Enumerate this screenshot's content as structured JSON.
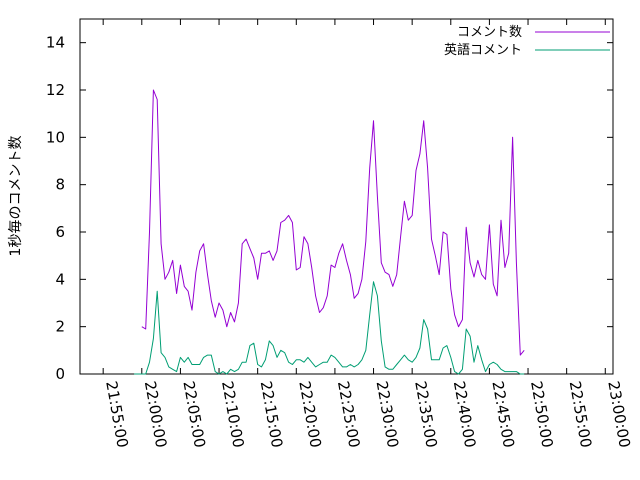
{
  "chart_data": {
    "type": "line",
    "title": "",
    "xlabel": "",
    "ylabel": "1秒毎のコメント数",
    "x_unit": "time (HH:MM:SS)",
    "xlim": [
      "21:52:00",
      "23:01:00"
    ],
    "ylim": [
      0,
      15
    ],
    "x_ticks": [
      "21:55:00",
      "22:00:00",
      "22:05:00",
      "22:10:00",
      "22:15:00",
      "22:20:00",
      "22:25:00",
      "22:30:00",
      "22:35:00",
      "22:40:00",
      "22:45:00",
      "22:50:00",
      "22:55:00",
      "23:00:00"
    ],
    "y_ticks": [
      0,
      2,
      4,
      6,
      8,
      10,
      12,
      14
    ],
    "grid": false,
    "legend_position": "top-right",
    "series": [
      {
        "name": "コメント数",
        "color": "#9400d3",
        "points": [
          [
            "22:00:00",
            2.0
          ],
          [
            "22:00:30",
            1.9
          ],
          [
            "22:01:00",
            6.0
          ],
          [
            "22:01:30",
            12.0
          ],
          [
            "22:02:00",
            11.6
          ],
          [
            "22:02:30",
            5.5
          ],
          [
            "22:03:00",
            4.0
          ],
          [
            "22:03:30",
            4.3
          ],
          [
            "22:04:00",
            4.8
          ],
          [
            "22:04:30",
            3.4
          ],
          [
            "22:05:00",
            4.6
          ],
          [
            "22:05:30",
            3.7
          ],
          [
            "22:06:00",
            3.5
          ],
          [
            "22:06:30",
            2.7
          ],
          [
            "22:07:00",
            4.3
          ],
          [
            "22:07:30",
            5.2
          ],
          [
            "22:08:00",
            5.5
          ],
          [
            "22:08:30",
            4.2
          ],
          [
            "22:09:00",
            3.1
          ],
          [
            "22:09:30",
            2.4
          ],
          [
            "22:10:00",
            3.0
          ],
          [
            "22:10:30",
            2.7
          ],
          [
            "22:11:00",
            2.0
          ],
          [
            "22:11:30",
            2.6
          ],
          [
            "22:12:00",
            2.2
          ],
          [
            "22:12:30",
            3.0
          ],
          [
            "22:13:00",
            5.5
          ],
          [
            "22:13:30",
            5.7
          ],
          [
            "22:14:00",
            5.3
          ],
          [
            "22:14:30",
            4.9
          ],
          [
            "22:15:00",
            4.0
          ],
          [
            "22:15:30",
            5.1
          ],
          [
            "22:16:00",
            5.1
          ],
          [
            "22:16:30",
            5.2
          ],
          [
            "22:17:00",
            4.8
          ],
          [
            "22:17:30",
            5.2
          ],
          [
            "22:18:00",
            6.4
          ],
          [
            "22:18:30",
            6.5
          ],
          [
            "22:19:00",
            6.7
          ],
          [
            "22:19:30",
            6.4
          ],
          [
            "22:20:00",
            4.4
          ],
          [
            "22:20:30",
            4.5
          ],
          [
            "22:21:00",
            5.8
          ],
          [
            "22:21:30",
            5.5
          ],
          [
            "22:22:00",
            4.5
          ],
          [
            "22:22:30",
            3.3
          ],
          [
            "22:23:00",
            2.6
          ],
          [
            "22:23:30",
            2.8
          ],
          [
            "22:24:00",
            3.3
          ],
          [
            "22:24:30",
            4.6
          ],
          [
            "22:25:00",
            4.5
          ],
          [
            "22:25:30",
            5.1
          ],
          [
            "22:26:00",
            5.5
          ],
          [
            "22:26:30",
            4.8
          ],
          [
            "22:27:00",
            4.2
          ],
          [
            "22:27:30",
            3.2
          ],
          [
            "22:28:00",
            3.4
          ],
          [
            "22:28:30",
            4.0
          ],
          [
            "22:29:00",
            5.6
          ],
          [
            "22:29:30",
            8.7
          ],
          [
            "22:30:00",
            10.7
          ],
          [
            "22:30:30",
            7.5
          ],
          [
            "22:31:00",
            4.7
          ],
          [
            "22:31:30",
            4.3
          ],
          [
            "22:32:00",
            4.2
          ],
          [
            "22:32:30",
            3.7
          ],
          [
            "22:33:00",
            4.2
          ],
          [
            "22:33:30",
            5.8
          ],
          [
            "22:34:00",
            7.3
          ],
          [
            "22:34:30",
            6.5
          ],
          [
            "22:35:00",
            6.7
          ],
          [
            "22:35:30",
            8.6
          ],
          [
            "22:36:00",
            9.3
          ],
          [
            "22:36:30",
            10.7
          ],
          [
            "22:37:00",
            8.7
          ],
          [
            "22:37:30",
            5.7
          ],
          [
            "22:38:00",
            5.0
          ],
          [
            "22:38:30",
            4.2
          ],
          [
            "22:39:00",
            6.0
          ],
          [
            "22:39:30",
            5.9
          ],
          [
            "22:40:00",
            3.6
          ],
          [
            "22:40:30",
            2.5
          ],
          [
            "22:41:00",
            2.0
          ],
          [
            "22:41:30",
            2.3
          ],
          [
            "22:42:00",
            6.2
          ],
          [
            "22:42:30",
            4.7
          ],
          [
            "22:43:00",
            4.1
          ],
          [
            "22:43:30",
            4.8
          ],
          [
            "22:44:00",
            4.2
          ],
          [
            "22:44:30",
            4.0
          ],
          [
            "22:45:00",
            6.3
          ],
          [
            "22:45:30",
            3.8
          ],
          [
            "22:46:00",
            3.3
          ],
          [
            "22:46:30",
            6.5
          ],
          [
            "22:47:00",
            4.5
          ],
          [
            "22:47:30",
            5.1
          ],
          [
            "22:48:00",
            10.0
          ],
          [
            "22:48:30",
            4.7
          ],
          [
            "22:49:00",
            0.8
          ],
          [
            "22:49:30",
            1.0
          ]
        ]
      },
      {
        "name": "英語コメント",
        "color": "#009e73",
        "points": [
          [
            "21:59:00",
            0.0
          ],
          [
            "22:00:30",
            0.0
          ],
          [
            "22:01:00",
            0.5
          ],
          [
            "22:01:30",
            1.5
          ],
          [
            "22:02:00",
            3.5
          ],
          [
            "22:02:30",
            0.9
          ],
          [
            "22:03:00",
            0.7
          ],
          [
            "22:03:30",
            0.3
          ],
          [
            "22:04:00",
            0.2
          ],
          [
            "22:04:30",
            0.1
          ],
          [
            "22:05:00",
            0.7
          ],
          [
            "22:05:30",
            0.5
          ],
          [
            "22:06:00",
            0.7
          ],
          [
            "22:06:30",
            0.4
          ],
          [
            "22:07:00",
            0.4
          ],
          [
            "22:07:30",
            0.4
          ],
          [
            "22:08:00",
            0.7
          ],
          [
            "22:08:30",
            0.8
          ],
          [
            "22:09:00",
            0.8
          ],
          [
            "22:09:30",
            0.1
          ],
          [
            "22:10:00",
            0.0
          ],
          [
            "22:10:30",
            0.1
          ],
          [
            "22:11:00",
            0.0
          ],
          [
            "22:11:30",
            0.2
          ],
          [
            "22:12:00",
            0.1
          ],
          [
            "22:12:30",
            0.2
          ],
          [
            "22:13:00",
            0.5
          ],
          [
            "22:13:30",
            0.5
          ],
          [
            "22:14:00",
            1.2
          ],
          [
            "22:14:30",
            1.3
          ],
          [
            "22:15:00",
            0.4
          ],
          [
            "22:15:30",
            0.3
          ],
          [
            "22:16:00",
            0.6
          ],
          [
            "22:16:30",
            1.4
          ],
          [
            "22:17:00",
            1.2
          ],
          [
            "22:17:30",
            0.7
          ],
          [
            "22:18:00",
            1.0
          ],
          [
            "22:18:30",
            0.9
          ],
          [
            "22:19:00",
            0.5
          ],
          [
            "22:19:30",
            0.4
          ],
          [
            "22:20:00",
            0.6
          ],
          [
            "22:20:30",
            0.6
          ],
          [
            "22:21:00",
            0.5
          ],
          [
            "22:21:30",
            0.7
          ],
          [
            "22:22:00",
            0.5
          ],
          [
            "22:22:30",
            0.3
          ],
          [
            "22:23:00",
            0.4
          ],
          [
            "22:23:30",
            0.5
          ],
          [
            "22:24:00",
            0.5
          ],
          [
            "22:24:30",
            0.8
          ],
          [
            "22:25:00",
            0.7
          ],
          [
            "22:25:30",
            0.5
          ],
          [
            "22:26:00",
            0.3
          ],
          [
            "22:26:30",
            0.3
          ],
          [
            "22:27:00",
            0.4
          ],
          [
            "22:27:30",
            0.3
          ],
          [
            "22:28:00",
            0.4
          ],
          [
            "22:28:30",
            0.6
          ],
          [
            "22:29:00",
            1.0
          ],
          [
            "22:29:30",
            2.5
          ],
          [
            "22:30:00",
            3.9
          ],
          [
            "22:30:30",
            3.3
          ],
          [
            "22:31:00",
            1.4
          ],
          [
            "22:31:30",
            0.3
          ],
          [
            "22:32:00",
            0.2
          ],
          [
            "22:32:30",
            0.2
          ],
          [
            "22:33:00",
            0.4
          ],
          [
            "22:33:30",
            0.6
          ],
          [
            "22:34:00",
            0.8
          ],
          [
            "22:34:30",
            0.6
          ],
          [
            "22:35:00",
            0.5
          ],
          [
            "22:35:30",
            0.7
          ],
          [
            "22:36:00",
            1.1
          ],
          [
            "22:36:30",
            2.3
          ],
          [
            "22:37:00",
            1.9
          ],
          [
            "22:37:30",
            0.6
          ],
          [
            "22:38:00",
            0.6
          ],
          [
            "22:38:30",
            0.6
          ],
          [
            "22:39:00",
            1.1
          ],
          [
            "22:39:30",
            1.2
          ],
          [
            "22:40:00",
            0.7
          ],
          [
            "22:40:30",
            0.1
          ],
          [
            "22:41:00",
            0.0
          ],
          [
            "22:41:30",
            0.2
          ],
          [
            "22:42:00",
            1.9
          ],
          [
            "22:42:30",
            1.6
          ],
          [
            "22:43:00",
            0.5
          ],
          [
            "22:43:30",
            1.2
          ],
          [
            "22:44:00",
            0.6
          ],
          [
            "22:44:30",
            0.1
          ],
          [
            "22:45:00",
            0.4
          ],
          [
            "22:45:30",
            0.5
          ],
          [
            "22:46:00",
            0.4
          ],
          [
            "22:46:30",
            0.2
          ],
          [
            "22:47:00",
            0.1
          ],
          [
            "22:47:30",
            0.1
          ],
          [
            "22:48:00",
            0.1
          ],
          [
            "22:48:30",
            0.1
          ],
          [
            "22:49:00",
            0.0
          ],
          [
            "22:49:30",
            0.0
          ]
        ]
      }
    ]
  }
}
